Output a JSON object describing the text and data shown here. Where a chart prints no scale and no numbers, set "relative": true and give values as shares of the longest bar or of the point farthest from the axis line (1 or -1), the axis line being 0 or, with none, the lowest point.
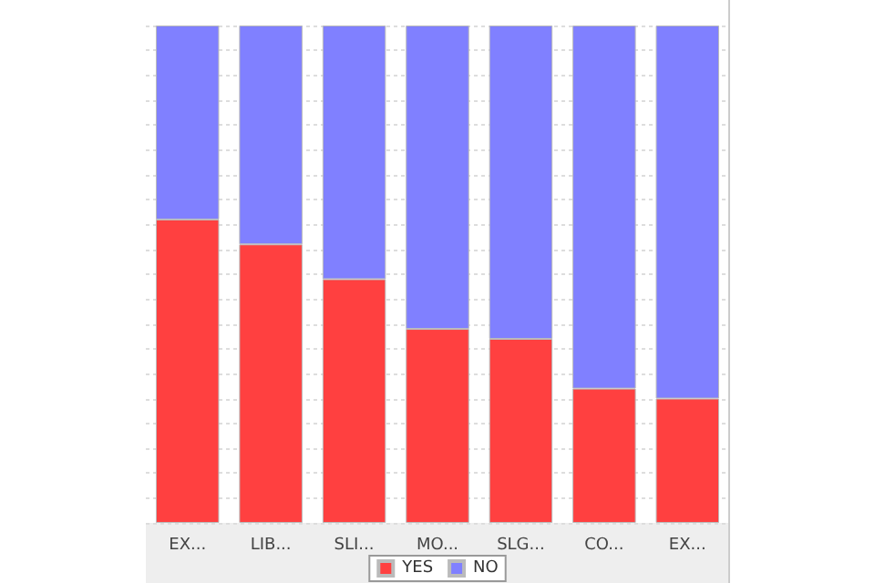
{
  "chart_data": {
    "type": "bar",
    "stacked": true,
    "relative": true,
    "grid": "y",
    "legend": "bottom",
    "categories": [
      "EX...",
      "LIB...",
      "SLI...",
      "MO...",
      "SLG...",
      "CO...",
      "EX..."
    ],
    "series": [
      {
        "name": "YES",
        "color": "#ff4040",
        "values": [
          0.61,
          0.56,
          0.49,
          0.39,
          0.37,
          0.27,
          0.25
        ]
      },
      {
        "name": "NO",
        "color": "#8080ff",
        "values": [
          0.39,
          0.44,
          0.51,
          0.61,
          0.63,
          0.73,
          0.75
        ]
      }
    ]
  }
}
